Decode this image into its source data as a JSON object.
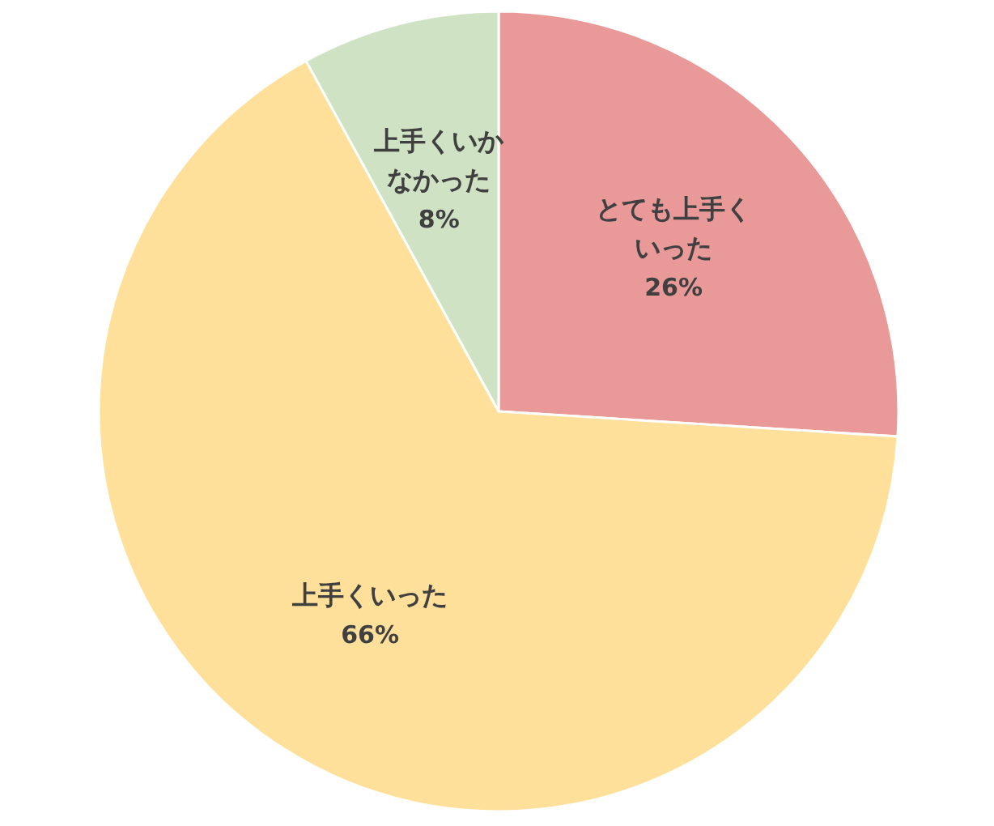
{
  "chart_data": {
    "type": "pie",
    "categories": [
      "とても上手くいった",
      "上手くいった",
      "上手くいかなかった"
    ],
    "values": [
      26,
      66,
      8
    ],
    "colors": [
      "#ea9999",
      "#ffe09a",
      "#cfe2c4"
    ],
    "value_labels": [
      "26%",
      "66%",
      "8%"
    ]
  }
}
